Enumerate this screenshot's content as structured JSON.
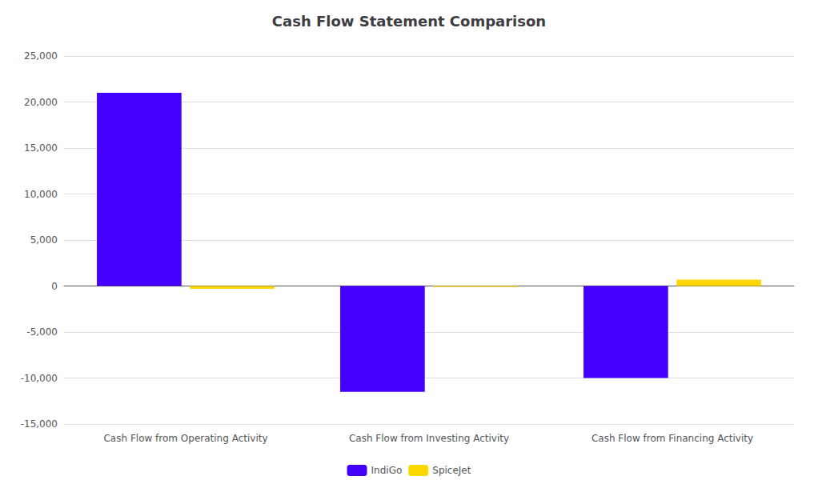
{
  "chart_data": {
    "type": "bar",
    "title": "Cash Flow Statement Comparison",
    "categories": [
      "Cash Flow from Operating Activity",
      "Cash Flow from Investing Activity",
      "Cash Flow from Financing Activity"
    ],
    "series": [
      {
        "name": "IndiGo",
        "color": "#4400FF",
        "values": [
          21000,
          -11500,
          -10000
        ]
      },
      {
        "name": "SpiceJet",
        "color": "#FFD700",
        "values": [
          -300,
          -100,
          700
        ]
      }
    ],
    "ylim": [
      -15000,
      25000
    ],
    "yticks": [
      {
        "value": -15000,
        "label": "-15,000"
      },
      {
        "value": -10000,
        "label": "-10,000"
      },
      {
        "value": -5000,
        "label": "-5,000"
      },
      0,
      {
        "value": 5000,
        "label": "5,000"
      },
      {
        "value": 10000,
        "label": "10,000"
      },
      {
        "value": 15000,
        "label": "15,000"
      },
      {
        "value": 20000,
        "label": "20,000"
      },
      {
        "value": 25000,
        "label": "25,000"
      }
    ],
    "grid": true,
    "legend": "bottom"
  }
}
